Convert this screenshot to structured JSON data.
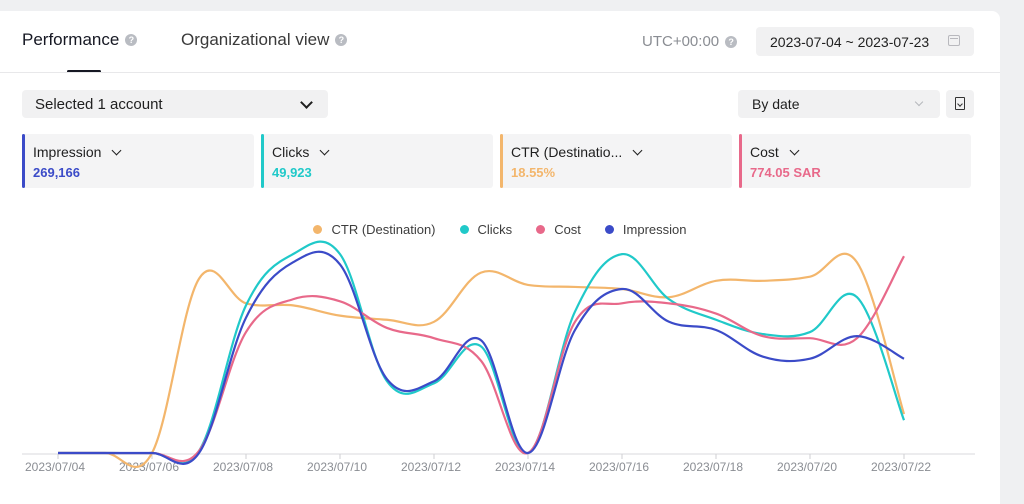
{
  "tabs": [
    {
      "label": "Performance"
    },
    {
      "label": "Organizational view"
    }
  ],
  "timezone": "UTC+00:00",
  "date_range": "2023-07-04 ~ 2023-07-23",
  "account_select": "Selected 1 account",
  "group_by": "By date",
  "metrics": [
    {
      "label": "Impression",
      "value": "269,166",
      "color": "#3b4bc8"
    },
    {
      "label": "Clicks",
      "value": "49,923",
      "color": "#20c9c9"
    },
    {
      "label": "CTR (Destinatio...",
      "value": "18.55%",
      "color": "#f3b66c"
    },
    {
      "label": "Cost",
      "value": "774.05 SAR",
      "color": "#e8698a"
    }
  ],
  "chart_data": {
    "type": "line",
    "x": [
      "2023/07/04",
      "2023/07/05",
      "2023/07/06",
      "2023/07/07",
      "2023/07/08",
      "2023/07/09",
      "2023/07/10",
      "2023/07/11",
      "2023/07/12",
      "2023/07/13",
      "2023/07/14",
      "2023/07/15",
      "2023/07/16",
      "2023/07/17",
      "2023/07/18",
      "2023/07/19",
      "2023/07/20",
      "2023/07/21",
      "2023/07/22",
      "2023/07/23"
    ],
    "tick_labels": [
      "2023/07/04",
      "2023/07/06",
      "2023/07/08",
      "2023/07/10",
      "2023/07/12",
      "2023/07/14",
      "2023/07/16",
      "2023/07/18",
      "2023/07/20",
      "2023/07/22"
    ],
    "y_axis_labels": "hidden",
    "normalized_scale": [
      0,
      100
    ],
    "legend_position": "top-center",
    "grid": false,
    "series": [
      {
        "name": "CTR (Destination)",
        "color": "#f3b66c",
        "values": [
          0,
          0,
          0,
          85,
          73,
          72,
          67,
          65,
          64,
          88,
          82,
          81,
          80,
          76,
          84,
          84,
          86,
          93,
          19,
          null
        ]
      },
      {
        "name": "Clicks",
        "color": "#20c9c9",
        "values": [
          0,
          0,
          0,
          1,
          72,
          97,
          97,
          35,
          34,
          52,
          0,
          69,
          97,
          75,
          65,
          58,
          59,
          76,
          16,
          null
        ]
      },
      {
        "name": "Cost",
        "color": "#e8698a",
        "values": [
          0,
          0,
          0,
          1,
          59,
          75,
          74,
          61,
          56,
          45,
          0,
          64,
          73,
          73,
          68,
          57,
          56,
          56,
          96,
          null
        ]
      },
      {
        "name": "Impression",
        "color": "#3b4bc8",
        "values": [
          0,
          0,
          0,
          0,
          66,
          93,
          92,
          36,
          35,
          55,
          0,
          60,
          80,
          64,
          60,
          47,
          46,
          57,
          46,
          null
        ]
      }
    ]
  }
}
